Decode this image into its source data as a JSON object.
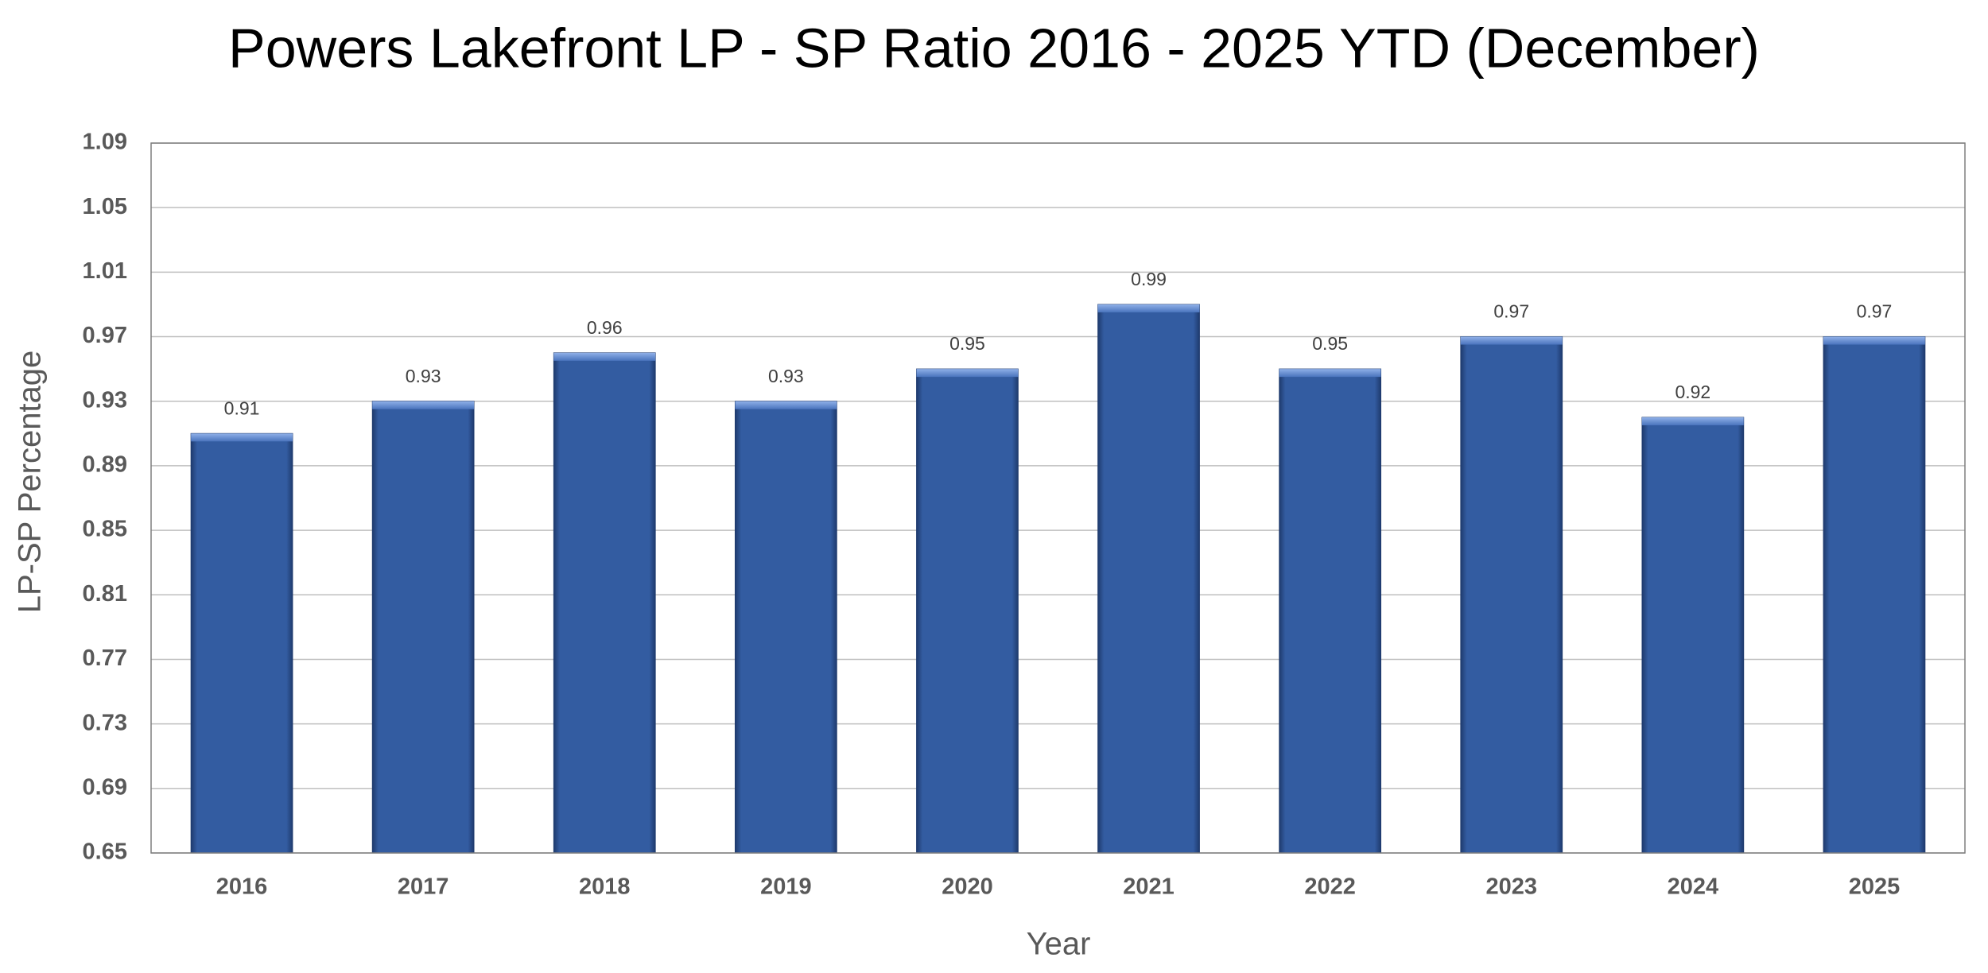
{
  "chart_data": {
    "type": "bar",
    "title": "Powers Lakefront LP - SP Ratio 2016 - 2025 YTD (December)",
    "x_label": "Year",
    "y_label": "LP-SP Percentage",
    "categories": [
      "2016",
      "2017",
      "2018",
      "2019",
      "2020",
      "2021",
      "2022",
      "2023",
      "2024",
      "2025"
    ],
    "values": [
      0.91,
      0.93,
      0.96,
      0.93,
      0.95,
      0.99,
      0.95,
      0.97,
      0.92,
      0.97
    ],
    "color": "#335ca1",
    "ylim": [
      0.65,
      1.09
    ],
    "yticks": [
      0.65,
      0.69,
      0.73,
      0.77,
      0.81,
      0.85,
      0.89,
      0.93,
      0.97,
      1.01,
      1.05,
      1.09
    ],
    "grid": true
  }
}
